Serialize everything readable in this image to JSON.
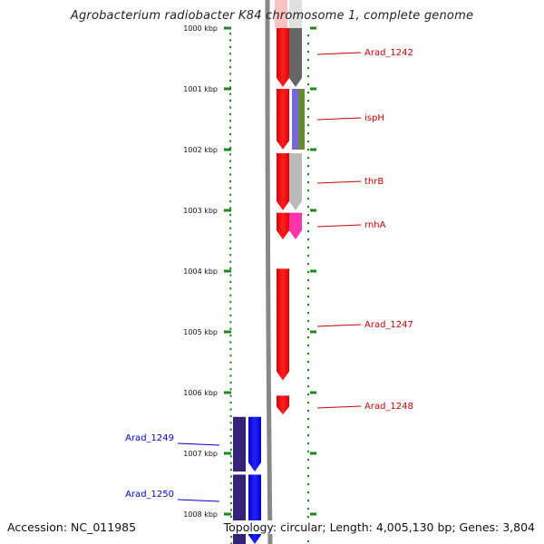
{
  "title": "Agrobacterium radiobacter K84 chromosome 1, complete genome",
  "footer": {
    "accession": "Accession: NC_011985",
    "info": "Topology: circular; Length: 4,005,130 bp; Genes: 3,804"
  },
  "scale": {
    "ticks": [
      {
        "label": "1000 kbp",
        "kbp": 1000
      },
      {
        "label": "1001 kbp",
        "kbp": 1001
      },
      {
        "label": "1002 kbp",
        "kbp": 1002
      },
      {
        "label": "1003 kbp",
        "kbp": 1003
      },
      {
        "label": "1004 kbp",
        "kbp": 1004
      },
      {
        "label": "1005 kbp",
        "kbp": 1005
      },
      {
        "label": "1006 kbp",
        "kbp": 1006
      },
      {
        "label": "1007 kbp",
        "kbp": 1007
      },
      {
        "label": "1008 kbp",
        "kbp": 1008
      }
    ]
  },
  "genes": [
    {
      "label": "Arad_1242",
      "strand": "+",
      "start_kbp": 1000.0,
      "end_kbp": 1000.97,
      "color": "#ff0000",
      "cog_color": "#666666"
    },
    {
      "label": "ispH",
      "strand": "+",
      "start_kbp": 1001.0,
      "end_kbp": 1002.0,
      "color": "#ff0000",
      "cog_color": "#7766dd",
      "cog_color2": "#668833"
    },
    {
      "label": "thrB",
      "strand": "+",
      "start_kbp": 1002.06,
      "end_kbp": 1003.0,
      "color": "#ff0000",
      "cog_color": "#bbbbbb"
    },
    {
      "label": "rnhA",
      "strand": "+",
      "start_kbp": 1003.04,
      "end_kbp": 1003.48,
      "color": "#ff0000",
      "cog_color": "#ff33aa"
    },
    {
      "label": "Arad_1247",
      "strand": "+",
      "start_kbp": 1003.96,
      "end_kbp": 1005.8,
      "color": "#ff0000"
    },
    {
      "label": "Arad_1248",
      "strand": "+",
      "start_kbp": 1006.05,
      "end_kbp": 1006.36,
      "color": "#ff0000"
    },
    {
      "label": "Arad_1249",
      "strand": "+",
      "start_kbp": 1006.4,
      "end_kbp": 1007.3,
      "color": "#0000ff",
      "cog_color": "#332277"
    },
    {
      "label": "Arad_1250",
      "strand": "+",
      "start_kbp": 1007.35,
      "end_kbp": 1008.5,
      "color": "#0000ff",
      "cog_color": "#332277"
    }
  ]
}
